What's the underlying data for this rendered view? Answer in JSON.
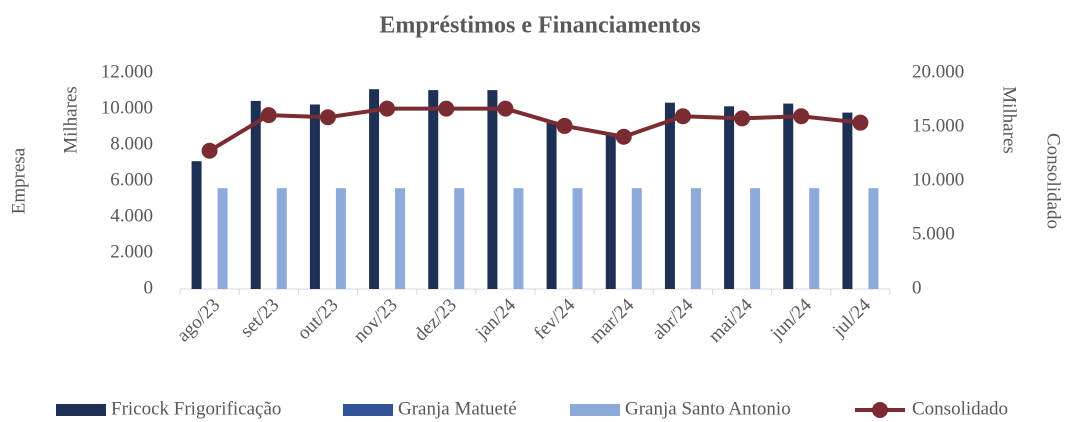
{
  "chart_data": {
    "type": "bar",
    "title": "Empréstimos e Financiamentos",
    "y_label": "Empresa",
    "y_units": "Milhares",
    "y2_label": "Consolidado",
    "y2_units": "Milhares",
    "categories": [
      "ago/23",
      "set/23",
      "out/23",
      "nov/23",
      "dez/23",
      "jan/24",
      "fev/24",
      "mar/24",
      "abr/24",
      "mai/24",
      "jun/24",
      "jul/24"
    ],
    "series": [
      {
        "name": "Fricock Frigorificação",
        "color": "#1f3055",
        "type": "bar",
        "values": [
          7100,
          10450,
          10250,
          11100,
          11050,
          11050,
          9300,
          8600,
          10350,
          10150,
          10300,
          9800
        ]
      },
      {
        "name": "Granja Matueté",
        "color": "#2f5496",
        "type": "bar",
        "values": [
          0,
          0,
          0,
          0,
          0,
          0,
          0,
          0,
          0,
          0,
          0,
          0
        ]
      },
      {
        "name": "Granja Santo Antonio",
        "color": "#8eaadb",
        "type": "bar",
        "values": [
          5600,
          5600,
          5600,
          5600,
          5600,
          5600,
          5600,
          5600,
          5600,
          5600,
          5600,
          5600
        ]
      },
      {
        "name": "Consolidado",
        "color": "#7b2c32",
        "type": "line",
        "axis": "y2",
        "values": [
          12800,
          16100,
          15900,
          16700,
          16700,
          16700,
          15100,
          14100,
          16000,
          15800,
          16000,
          15400
        ]
      }
    ],
    "ylim": [
      0,
      12000
    ],
    "yticks": [
      0,
      {
        "value": 2000,
        "label": "2.000"
      },
      {
        "value": 4000,
        "label": "4.000"
      },
      {
        "value": 6000,
        "label": "6.000"
      },
      {
        "value": 8000,
        "label": "8.000"
      },
      {
        "value": 10000,
        "label": "10.000"
      },
      {
        "value": 12000,
        "label": "12.000"
      }
    ],
    "y2lim": [
      0,
      20000
    ],
    "y2ticks": [
      0,
      {
        "value": 5000,
        "label": "5.000"
      },
      {
        "value": 10000,
        "label": "10.000"
      },
      {
        "value": 15000,
        "label": "15.000"
      },
      {
        "value": 20000,
        "label": "20.000"
      }
    ],
    "grid": false
  }
}
